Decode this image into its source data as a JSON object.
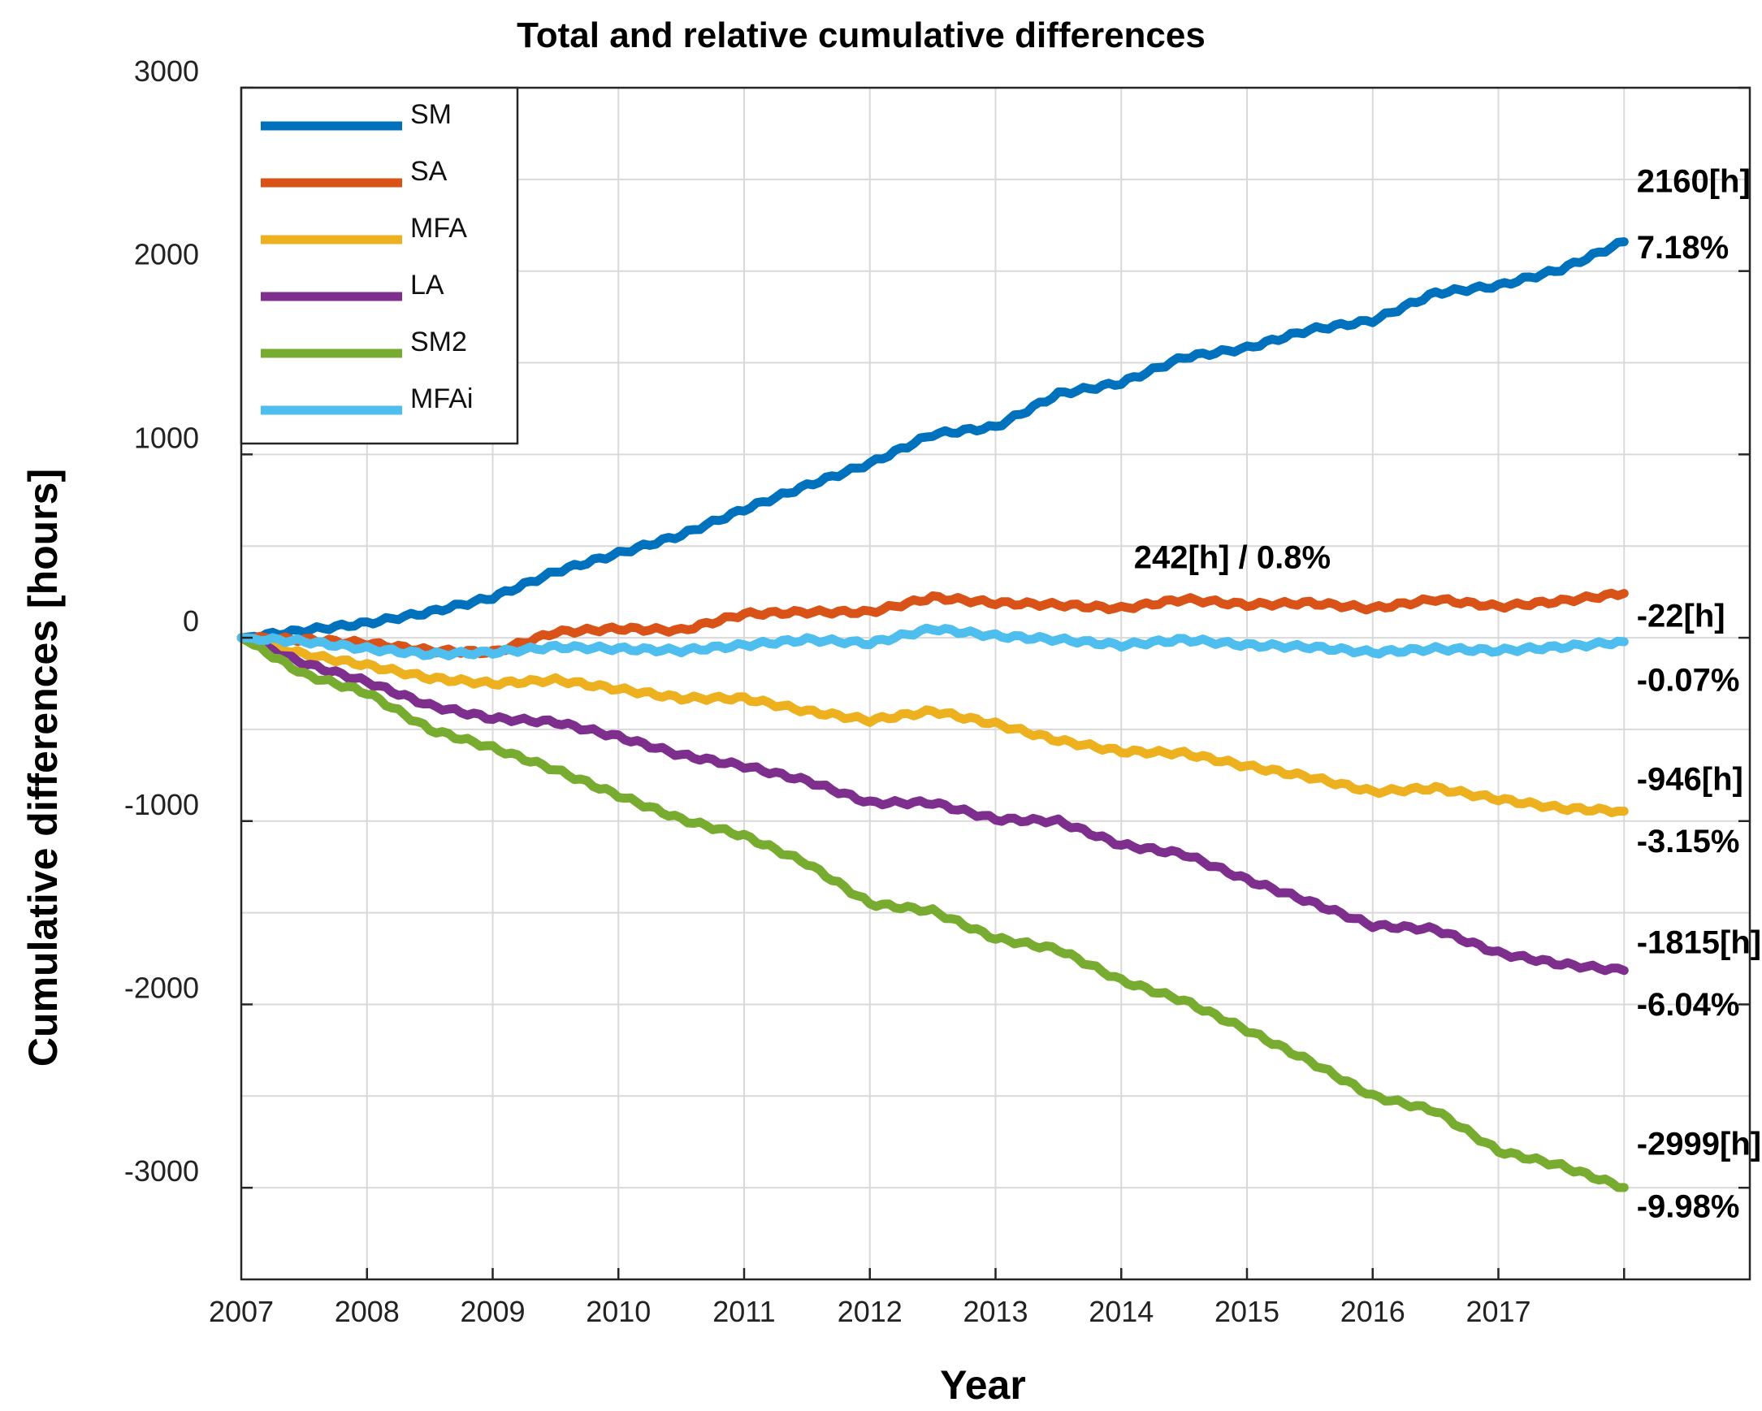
{
  "chart_data": {
    "type": "line",
    "title": "Total and relative cumulative differences",
    "xlabel": "Year",
    "ylabel": "Cumulative differences [hours]",
    "xlim": [
      2007,
      2019
    ],
    "ylim": [
      -3500,
      3000
    ],
    "xticks": [
      "2007",
      "2008",
      "2009",
      "2010",
      "2011",
      "2012",
      "2013",
      "2014",
      "2015",
      "2016",
      "2017"
    ],
    "yticks": [
      "3000",
      "2000",
      "1000",
      "0",
      "-1000",
      "-2000",
      "-3000"
    ],
    "grid": true,
    "legend_position": "top-left",
    "x": [
      2007,
      2007.5,
      2008,
      2008.5,
      2009,
      2009.5,
      2010,
      2010.5,
      2011,
      2011.5,
      2012,
      2012.5,
      2013,
      2013.5,
      2014,
      2014.5,
      2015,
      2015.5,
      2016,
      2016.5,
      2017,
      2017.5,
      2018
    ],
    "series": [
      {
        "name": "SM",
        "color": "#0072BD",
        "values": [
          0,
          40,
          80,
          140,
          220,
          360,
          460,
          560,
          700,
          830,
          950,
          1110,
          1150,
          1330,
          1390,
          1530,
          1580,
          1680,
          1730,
          1880,
          1920,
          2010,
          2160
        ]
      },
      {
        "name": "SA",
        "color": "#D95319",
        "values": [
          0,
          -10,
          -30,
          -70,
          -80,
          30,
          50,
          40,
          130,
          140,
          140,
          220,
          190,
          180,
          160,
          210,
          180,
          190,
          160,
          210,
          170,
          200,
          242
        ]
      },
      {
        "name": "MFA",
        "color": "#EDB120",
        "values": [
          0,
          -90,
          -150,
          -220,
          -250,
          -230,
          -280,
          -330,
          -330,
          -400,
          -450,
          -400,
          -470,
          -560,
          -620,
          -630,
          -700,
          -760,
          -840,
          -820,
          -880,
          -930,
          -946
        ]
      },
      {
        "name": "LA",
        "color": "#7E2F8E",
        "values": [
          0,
          -140,
          -240,
          -370,
          -440,
          -460,
          -540,
          -640,
          -700,
          -780,
          -900,
          -900,
          -990,
          -1000,
          -1130,
          -1180,
          -1320,
          -1440,
          -1570,
          -1590,
          -1720,
          -1780,
          -1815
        ]
      },
      {
        "name": "SM2",
        "color": "#77AC30",
        "values": [
          0,
          -200,
          -300,
          -500,
          -600,
          -720,
          -860,
          -990,
          -1080,
          -1230,
          -1450,
          -1490,
          -1640,
          -1700,
          -1870,
          -1980,
          -2140,
          -2310,
          -2500,
          -2580,
          -2800,
          -2880,
          -2999
        ]
      },
      {
        "name": "MFAi",
        "color": "#4DBEEE",
        "values": [
          0,
          -20,
          -60,
          -90,
          -80,
          -50,
          -60,
          -70,
          -40,
          -10,
          -30,
          50,
          10,
          -10,
          -40,
          -10,
          -40,
          -50,
          -80,
          -60,
          -70,
          -50,
          -22
        ]
      }
    ],
    "annotations": [
      {
        "text": "2160[h]",
        "x": 2018.1,
        "y": 2430
      },
      {
        "text": "7.18%",
        "x": 2018.1,
        "y": 2070
      },
      {
        "text": "242[h] / 0.8%",
        "x": 2014.1,
        "y": 380
      },
      {
        "text": "-22[h]",
        "x": 2018.1,
        "y": 60
      },
      {
        "text": "-0.07%",
        "x": 2018.1,
        "y": -290
      },
      {
        "text": "-946[h]",
        "x": 2018.1,
        "y": -830
      },
      {
        "text": "-3.15%",
        "x": 2018.1,
        "y": -1170
      },
      {
        "text": "-1815[h]",
        "x": 2018.1,
        "y": -1720
      },
      {
        "text": "-6.04%",
        "x": 2018.1,
        "y": -2060
      },
      {
        "text": "-2999[h]",
        "x": 2018.1,
        "y": -2820
      },
      {
        "text": "-9.98%",
        "x": 2018.1,
        "y": -3160
      }
    ]
  }
}
